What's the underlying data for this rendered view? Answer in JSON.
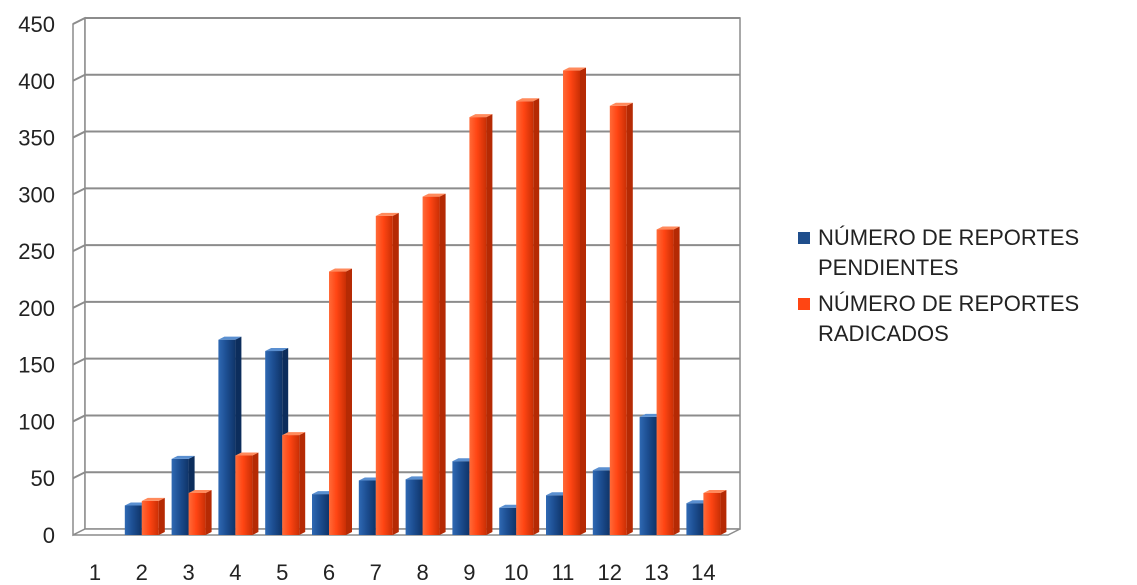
{
  "chart_data": {
    "type": "bar",
    "style": "3d-column",
    "categories": [
      "1",
      "2",
      "3",
      "4",
      "5",
      "6",
      "7",
      "8",
      "9",
      "10",
      "11",
      "12",
      "13",
      "14"
    ],
    "series": [
      {
        "name": "NÚMERO DE REPORTES PENDIENTES",
        "color": "#1f4e8c",
        "values": [
          0,
          26,
          67,
          172,
          162,
          36,
          48,
          49,
          65,
          24,
          35,
          57,
          104,
          28
        ]
      },
      {
        "name": "NÚMERO DE REPORTES RADICADOS",
        "color": "#ff4513",
        "values": [
          0,
          30,
          37,
          70,
          88,
          232,
          281,
          298,
          368,
          382,
          409,
          378,
          269,
          37
        ]
      }
    ],
    "title": "",
    "xlabel": "",
    "ylabel": "",
    "ylim": [
      0,
      450
    ],
    "yticks": [
      0,
      50,
      100,
      150,
      200,
      250,
      300,
      350,
      400,
      450
    ],
    "grid": true,
    "legend": "right"
  }
}
